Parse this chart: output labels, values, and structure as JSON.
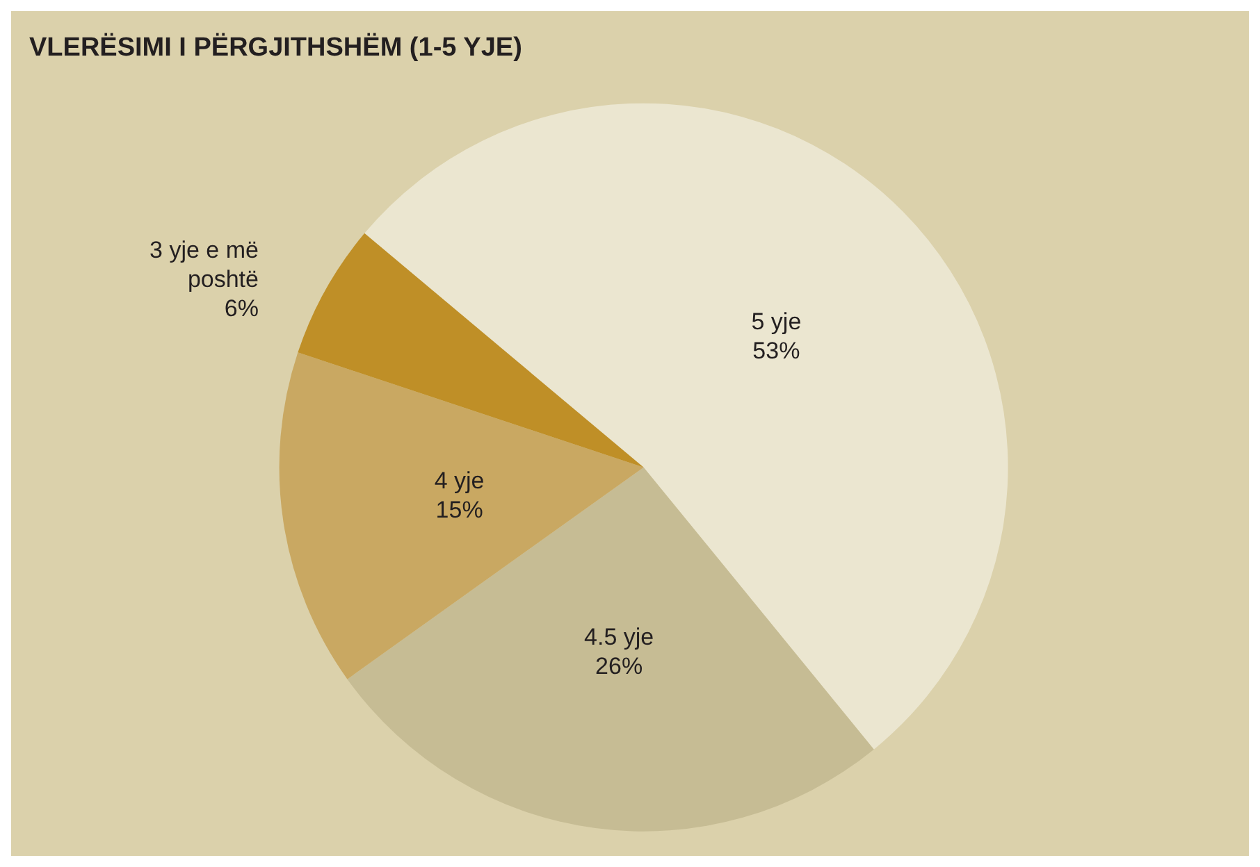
{
  "chart_data": {
    "type": "pie",
    "title": "VLERËSIMI I PËRGJITHSHËM (1-5 YJE)",
    "categories": [
      "5 yje",
      "4.5 yje",
      "4 yje",
      "3 yje e më poshtë"
    ],
    "values": [
      53,
      26,
      15,
      6
    ],
    "value_labels": [
      "53%",
      "26%",
      "15%",
      "6%"
    ],
    "colors": [
      "#ebe6d0",
      "#c6bc94",
      "#c9a862",
      "#bf8f27"
    ],
    "legend": false
  }
}
